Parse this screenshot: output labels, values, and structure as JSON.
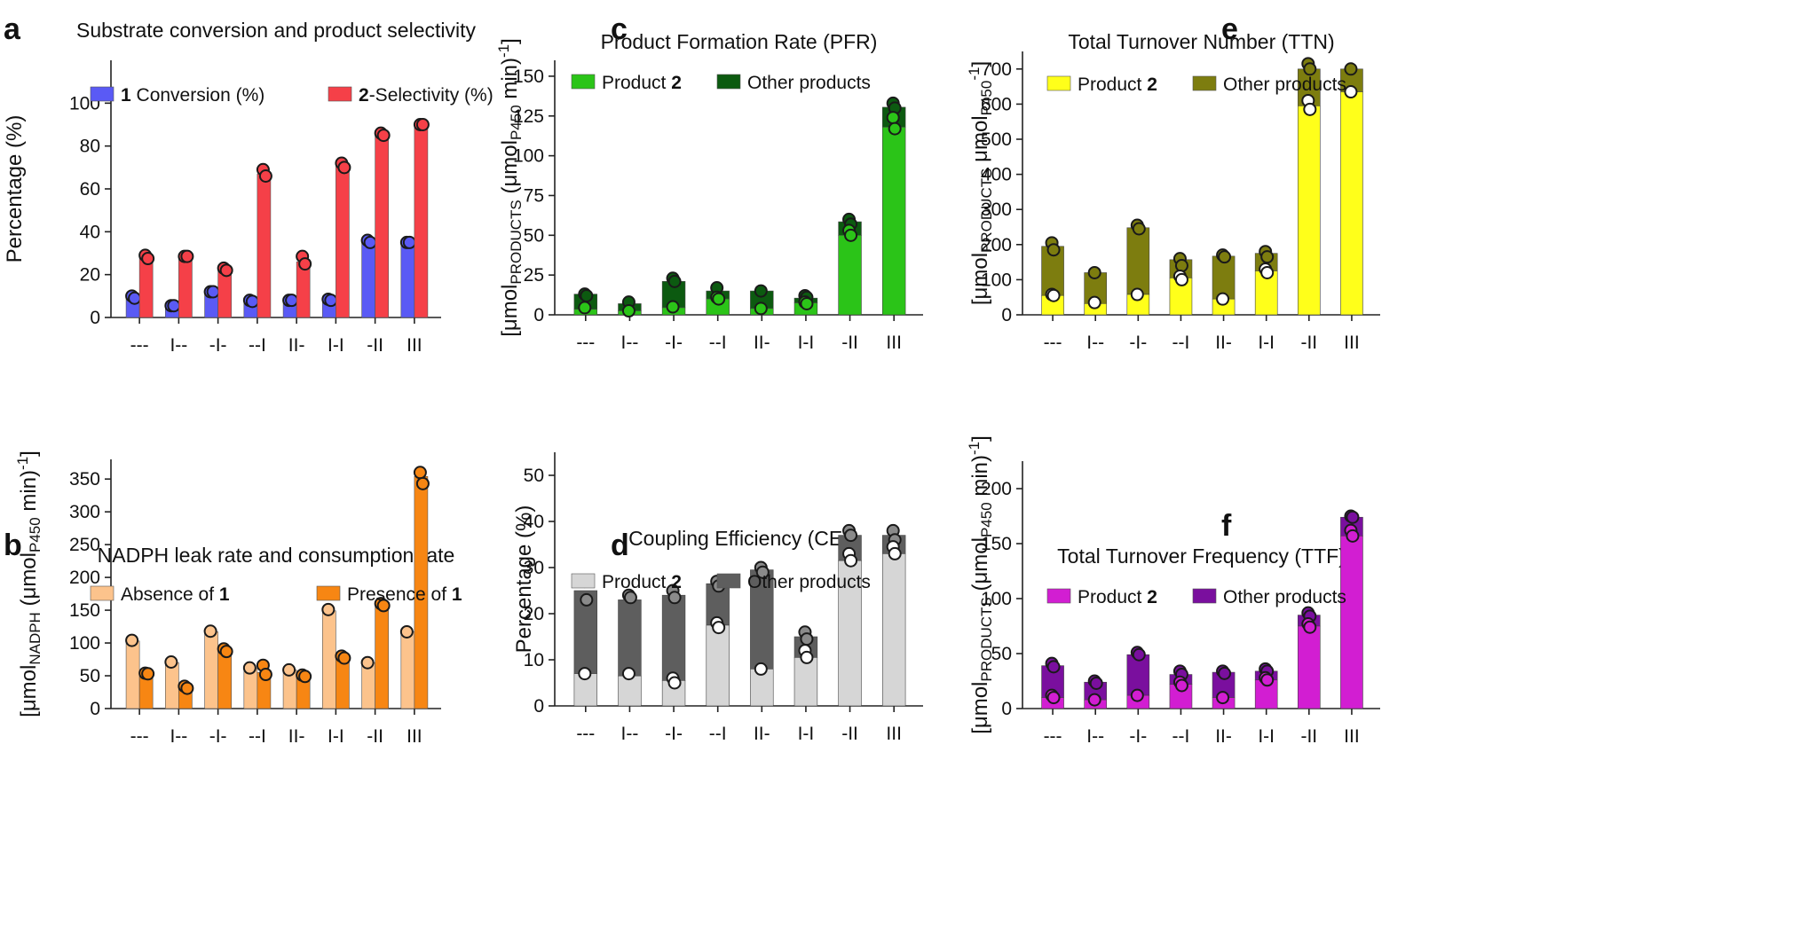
{
  "chart_data": [
    {
      "panel": "a",
      "type": "bar",
      "title": "Substrate conversion and product selectivity",
      "ylabel": "Percentage (%)",
      "ylim": [
        0,
        120
      ],
      "yticks": [
        0,
        20,
        40,
        60,
        80,
        100
      ],
      "categories": [
        "---",
        "I--",
        "-I-",
        "--I",
        "II-",
        "I-I",
        "-II",
        "III"
      ],
      "series": [
        {
          "name": "1 Conversion (%)",
          "legend_bold": "1",
          "legend_text": " Conversion (%)",
          "color": "#5a5af5",
          "values": [
            9,
            5.5,
            12,
            7.5,
            8,
            8.5,
            35,
            35
          ],
          "replicates": [
            [
              10,
              9
            ],
            [
              5.5,
              5.5
            ],
            [
              12,
              12
            ],
            [
              8,
              7.5
            ],
            [
              8,
              8
            ],
            [
              8.5,
              8
            ],
            [
              36,
              35
            ],
            [
              35,
              35
            ]
          ]
        },
        {
          "name": "2-Selectivity (%)",
          "legend_bold": "2",
          "legend_text": "-Selectivity (%)",
          "color": "#f54048",
          "values": [
            28,
            28.5,
            22.5,
            67,
            26,
            70.5,
            85,
            90
          ],
          "replicates": [
            [
              29,
              27.5
            ],
            [
              28.5,
              28.5
            ],
            [
              23,
              22
            ],
            [
              69,
              66
            ],
            [
              28.5,
              25
            ],
            [
              72,
              70
            ],
            [
              86,
              85
            ],
            [
              90,
              90
            ]
          ]
        }
      ],
      "legend": "top"
    },
    {
      "panel": "b",
      "type": "bar",
      "title": "NADPH leak rate and consumption rate",
      "ylabel_parts": [
        "[μmol",
        "NADPH",
        " (μmol",
        "P450",
        " min)",
        "-1",
        "]"
      ],
      "ylim": [
        0,
        380
      ],
      "yticks": [
        0,
        50,
        100,
        150,
        200,
        250,
        300,
        350
      ],
      "categories": [
        "---",
        "I--",
        "-I-",
        "--I",
        "II-",
        "I-I",
        "-II",
        "III"
      ],
      "series": [
        {
          "name": "Absence of 1",
          "legend_text": "Absence of ",
          "legend_bold": "1",
          "color": "#fcc38c",
          "values": [
            103,
            70,
            117,
            62,
            59,
            149,
            70,
            117
          ],
          "replicates": [
            [
              104
            ],
            [
              71
            ],
            [
              118
            ],
            [
              62
            ],
            [
              59
            ],
            [
              151
            ],
            [
              70
            ],
            [
              117
            ]
          ]
        },
        {
          "name": "Presence of 1",
          "legend_text": "Presence of ",
          "legend_bold": "1",
          "color": "#f78613",
          "values": [
            52,
            31,
            88,
            55,
            49,
            78,
            157,
            354
          ],
          "replicates": [
            [
              54,
              53
            ],
            [
              34,
              31
            ],
            [
              91,
              87
            ],
            [
              66,
              52
            ],
            [
              51,
              49
            ],
            [
              80,
              77
            ],
            [
              160,
              157
            ],
            [
              360,
              343
            ]
          ]
        }
      ],
      "legend": "top"
    },
    {
      "panel": "c",
      "type": "stacked-bar",
      "title": "Product Formation Rate (PFR)",
      "ylabel_parts": [
        "[μmol",
        "PRODUCTS",
        " (μmol",
        "P450",
        " min)",
        "-1",
        "]"
      ],
      "ylim": [
        0,
        160
      ],
      "yticks": [
        0,
        25,
        50,
        75,
        100,
        125,
        150
      ],
      "categories": [
        "---",
        "I--",
        "-I-",
        "--I",
        "II-",
        "I-I",
        "-II",
        "III"
      ],
      "series": [
        {
          "name": "Product 2",
          "legend_text": "Product ",
          "legend_bold": "2",
          "color": "#2bc418",
          "values": [
            3.5,
            2.5,
            4.5,
            10,
            4,
            7.5,
            50,
            118
          ],
          "replicates": [
            [
              4.5
            ],
            [
              2.5
            ],
            [
              5
            ],
            [
              11,
              10
            ],
            [
              4
            ],
            [
              8,
              7
            ],
            [
              53,
              50
            ],
            [
              124,
              117
            ]
          ]
        },
        {
          "name": "Other products",
          "legend_text": "Other products",
          "color": "#0c5a10",
          "values": [
            9.5,
            4.5,
            16.5,
            5,
            11,
            3,
            8.5,
            12.5
          ],
          "total_replicates": [
            [
              13,
              12
            ],
            [
              8
            ],
            [
              23,
              21
            ],
            [
              17
            ],
            [
              15
            ],
            [
              12,
              11
            ],
            [
              60,
              57
            ],
            [
              133,
              130
            ]
          ]
        }
      ],
      "legend": "top"
    },
    {
      "panel": "d",
      "type": "stacked-bar",
      "title": "Coupling Efficiency (CE)",
      "ylabel": "Percentage (%)",
      "ylim": [
        0,
        55
      ],
      "yticks": [
        0,
        10,
        20,
        30,
        40,
        50
      ],
      "categories": [
        "---",
        "I--",
        "-I-",
        "--I",
        "II-",
        "I-I",
        "-II",
        "III"
      ],
      "series": [
        {
          "name": "Product 2",
          "legend_text": "Product ",
          "legend_bold": "2",
          "color": "#d6d6d6",
          "values": [
            7,
            6.5,
            5.5,
            17.5,
            8,
            10.5,
            31.5,
            33
          ],
          "replicates": [
            [
              7
            ],
            [
              7
            ],
            [
              6,
              5
            ],
            [
              18,
              17
            ],
            [
              8
            ],
            [
              12,
              10.5
            ],
            [
              33,
              31.5
            ],
            [
              34.5,
              33
            ]
          ]
        },
        {
          "name": "Other products",
          "legend_text": "Other products",
          "color": "#5e5e5e",
          "values": [
            18,
            16.5,
            18.5,
            9,
            21.5,
            4.5,
            5.5,
            4
          ],
          "total_replicates": [
            [
              27,
              23
            ],
            [
              24,
              23.5
            ],
            [
              25,
              23.5
            ],
            [
              27,
              26
            ],
            [
              30,
              29
            ],
            [
              16,
              14.5
            ],
            [
              38,
              37
            ],
            [
              38,
              36
            ]
          ]
        }
      ],
      "legend": "top"
    },
    {
      "panel": "e",
      "type": "stacked-bar",
      "title": "Total Turnover Number (TTN)",
      "ylabel_parts": [
        "[μmol",
        "PRODUCTS",
        " μmol",
        "P450",
        "",
        "-1",
        "]"
      ],
      "ylim": [
        0,
        750
      ],
      "yticks": [
        0,
        100,
        200,
        300,
        400,
        500,
        600,
        700
      ],
      "categories": [
        "---",
        "I--",
        "-I-",
        "--I",
        "II-",
        "I-I",
        "-II",
        "III"
      ],
      "series": [
        {
          "name": "Product 2",
          "legend_text": "Product ",
          "legend_bold": "2",
          "color": "#ffff1a",
          "values": [
            55,
            32,
            58,
            105,
            45,
            125,
            595,
            635
          ],
          "replicates": [
            [
              58,
              55
            ],
            [
              35
            ],
            [
              58
            ],
            [
              110,
              100
            ],
            [
              45
            ],
            [
              130,
              120
            ],
            [
              610,
              585
            ],
            [
              635
            ]
          ]
        },
        {
          "name": "Other products",
          "legend_text": "Other products",
          "color": "#7d7d0f",
          "values": [
            140,
            88,
            190,
            52,
            122,
            50,
            105,
            65
          ],
          "total_replicates": [
            [
              205,
              185
            ],
            [
              120
            ],
            [
              255,
              245
            ],
            [
              160,
              140
            ],
            [
              170,
              165
            ],
            [
              180,
              165
            ],
            [
              715,
              700
            ],
            [
              700
            ]
          ]
        }
      ],
      "legend": "top"
    },
    {
      "panel": "f",
      "type": "stacked-bar",
      "title": "Total Turnover Frequency (TTF)",
      "ylabel_parts": [
        "[μmol",
        "PRODUCTS",
        " (μmol",
        "P450",
        " min)",
        "-1",
        "]"
      ],
      "ylim": [
        0,
        225
      ],
      "yticks": [
        0,
        50,
        100,
        150,
        200
      ],
      "categories": [
        "---",
        "I--",
        "-I-",
        "--I",
        "II-",
        "I-I",
        "-II",
        "III"
      ],
      "series": [
        {
          "name": "Product 2",
          "legend_text": "Product ",
          "legend_bold": "2",
          "color": "#d21ed2",
          "values": [
            10,
            8,
            12,
            22,
            10,
            26,
            75,
            157
          ],
          "replicates": [
            [
              12,
              10
            ],
            [
              8
            ],
            [
              12
            ],
            [
              24,
              21
            ],
            [
              10
            ],
            [
              28,
              26
            ],
            [
              77,
              74
            ],
            [
              162,
              157
            ]
          ]
        },
        {
          "name": "Other products",
          "legend_text": "Other products",
          "color": "#7a0f9e",
          "values": [
            29,
            16,
            37,
            9,
            23,
            8,
            10,
            17
          ],
          "total_replicates": [
            [
              41,
              38
            ],
            [
              25,
              23
            ],
            [
              51,
              49
            ],
            [
              34,
              31
            ],
            [
              34,
              32
            ],
            [
              36,
              34
            ],
            [
              87,
              84
            ],
            [
              175,
              174
            ]
          ]
        }
      ],
      "legend": "top"
    }
  ]
}
